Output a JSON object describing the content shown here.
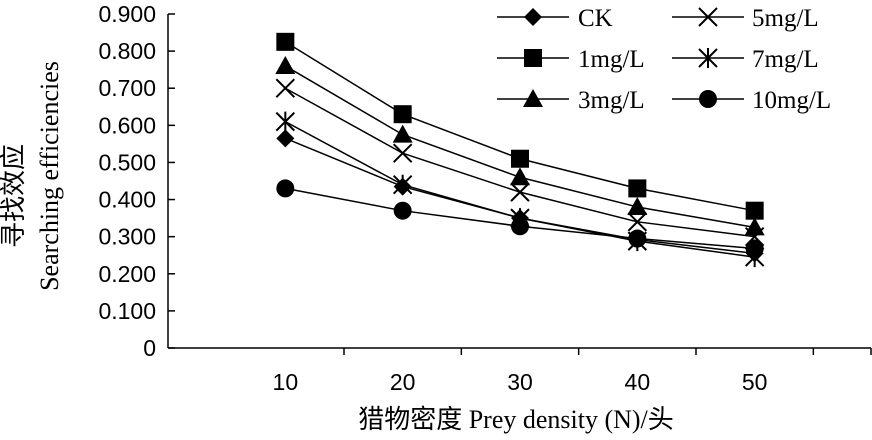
{
  "chart_data": {
    "type": "line",
    "x": [
      10,
      20,
      30,
      40,
      50
    ],
    "xlim": [
      0,
      60
    ],
    "ylim": [
      0,
      0.9
    ],
    "xticks": [
      "10",
      "20",
      "30",
      "40",
      "50"
    ],
    "yticks": [
      "0",
      "0.100",
      "0.200",
      "0.300",
      "0.400",
      "0.500",
      "0.600",
      "0.700",
      "0.800",
      "0.900"
    ],
    "xlabel": "猎物密度 Prey density (N)/头",
    "ylabel_cn": "寻找效应",
    "ylabel_en": "Searching efficiencies",
    "grid": false,
    "legend_position": "top-right",
    "series": [
      {
        "name": "CK",
        "marker": "diamond",
        "values": [
          0.565,
          0.435,
          0.35,
          0.292,
          0.255
        ]
      },
      {
        "name": "5mg/L",
        "marker": "x",
        "values": [
          0.7,
          0.525,
          0.42,
          0.34,
          0.3
        ]
      },
      {
        "name": "1mg/L",
        "marker": "square",
        "values": [
          0.825,
          0.63,
          0.51,
          0.43,
          0.37
        ]
      },
      {
        "name": "7mg/L",
        "marker": "asterisk",
        "values": [
          0.61,
          0.44,
          0.35,
          0.288,
          0.245
        ]
      },
      {
        "name": "3mg/L",
        "marker": "triangle",
        "values": [
          0.76,
          0.575,
          0.46,
          0.38,
          0.325
        ]
      },
      {
        "name": "10mg/L",
        "marker": "circle",
        "values": [
          0.43,
          0.37,
          0.328,
          0.295,
          0.268
        ]
      }
    ]
  }
}
